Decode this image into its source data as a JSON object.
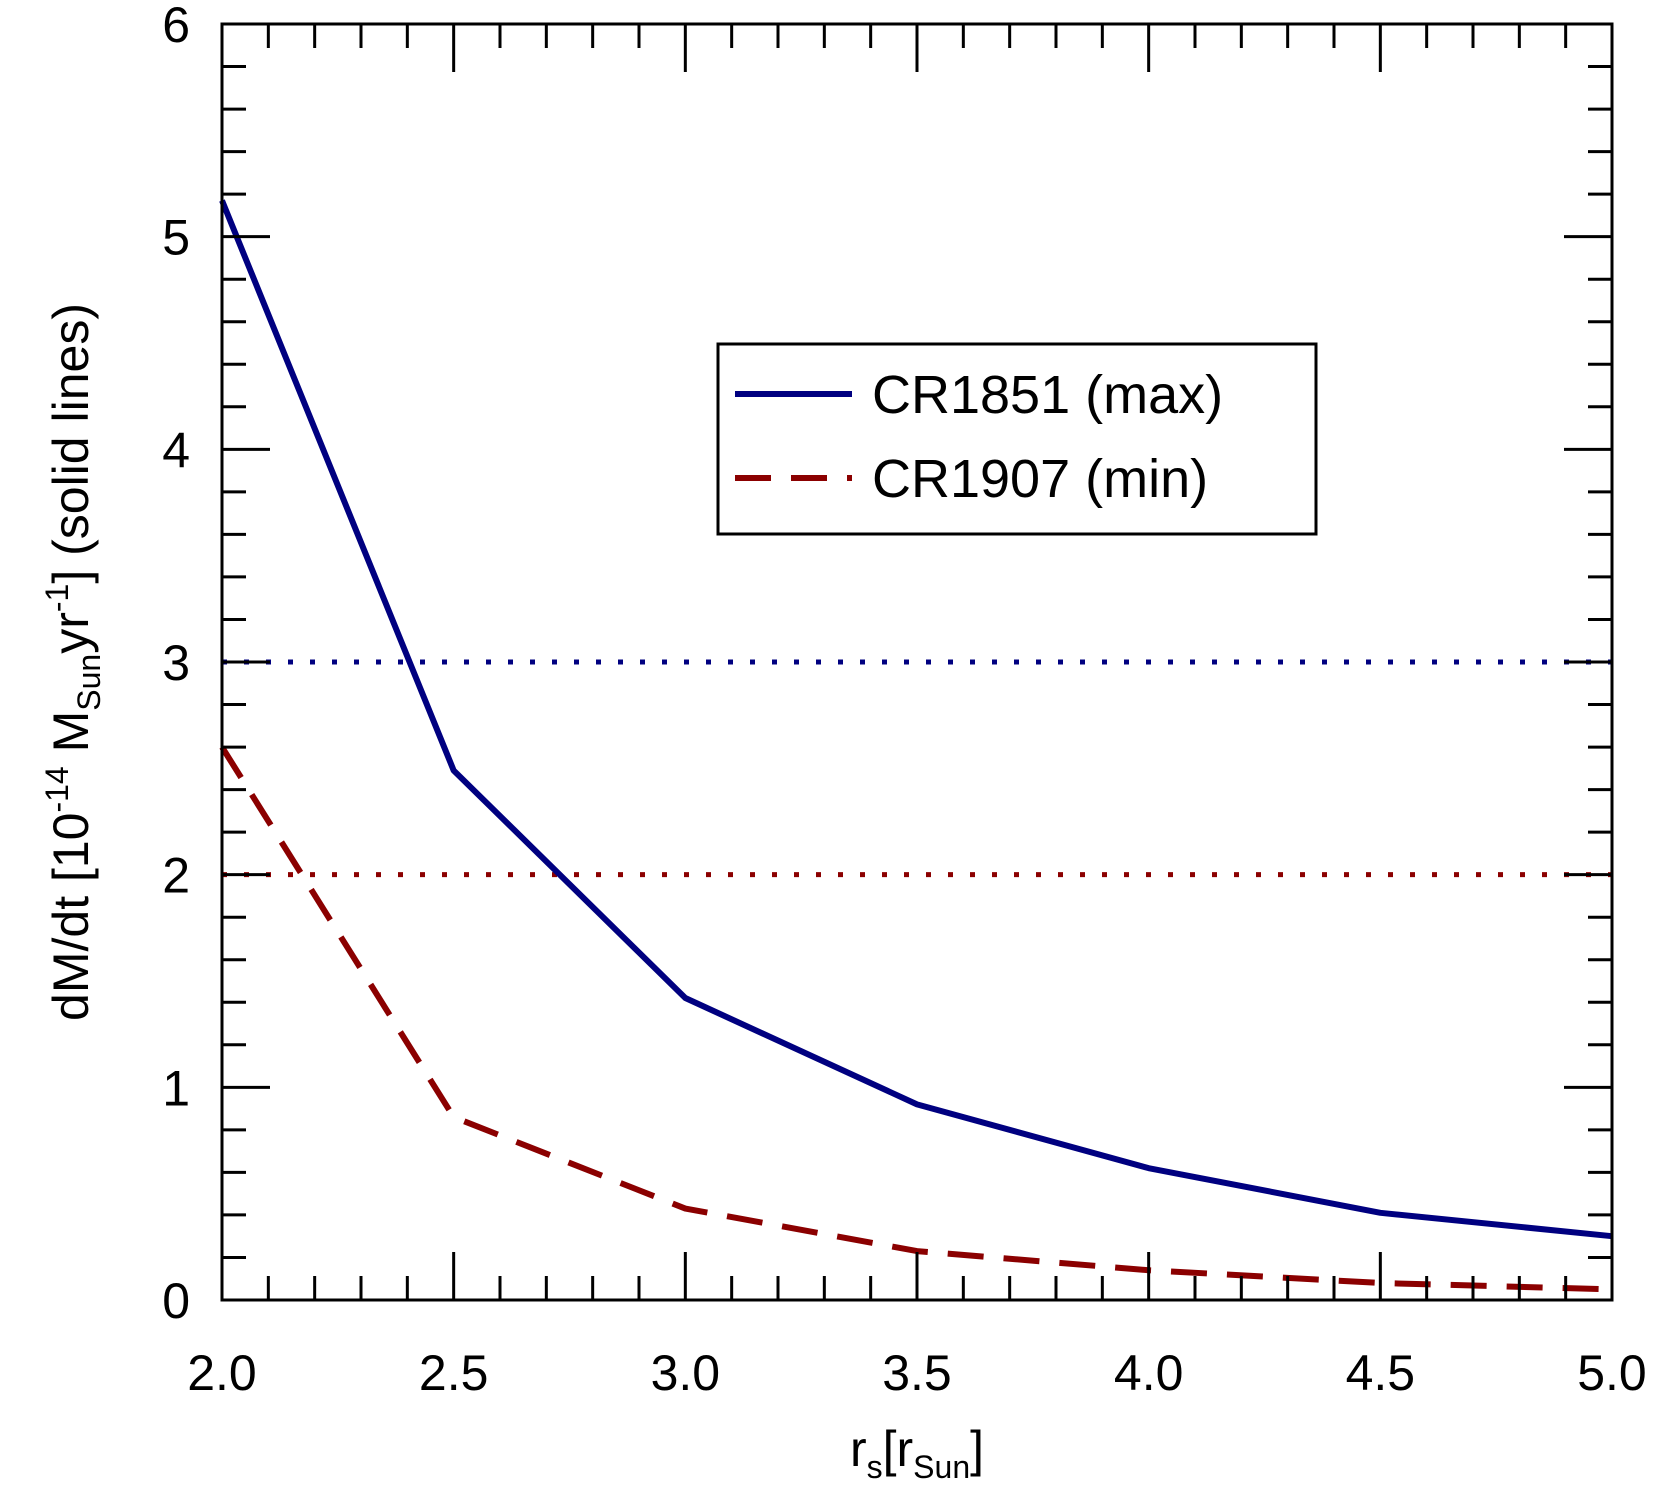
{
  "chart_data": {
    "type": "line",
    "xlabel": {
      "main": "r",
      "sub": "s",
      "bracket_open": "[r",
      "bracket_sub": "Sun",
      "bracket_close": "]"
    },
    "ylabel": {
      "prefix": "dM/dt [10",
      "exp": "-14",
      "mid": " M",
      "sub": "Sun",
      "unit": "yr",
      "unit_exp": "-1",
      "suffix": "] (solid lines)"
    },
    "xlim": [
      2.0,
      5.0
    ],
    "ylim": [
      0,
      6
    ],
    "xticks": [
      "2.0",
      "2.5",
      "3.0",
      "3.5",
      "4.0",
      "4.5",
      "5.0"
    ],
    "yticks": [
      "0",
      "1",
      "2",
      "3",
      "4",
      "5",
      "6"
    ],
    "x": [
      2.0,
      2.5,
      3.0,
      3.5,
      4.0,
      4.5,
      5.0
    ],
    "series": [
      {
        "name": "CR1851 (max)",
        "color": "#000080",
        "style": "solid",
        "values": [
          5.17,
          2.49,
          1.42,
          0.92,
          0.62,
          0.41,
          0.3
        ]
      },
      {
        "name": "CR1907 (min)",
        "color": "#8b0000",
        "style": "dashed",
        "values": [
          2.6,
          0.86,
          0.43,
          0.23,
          0.14,
          0.08,
          0.05
        ]
      }
    ],
    "reference_lines": [
      {
        "y": 3.0,
        "color": "#000080",
        "style": "dotted"
      },
      {
        "y": 2.0,
        "color": "#8b0000",
        "style": "dotted"
      }
    ],
    "legend_position": "upper-right"
  }
}
